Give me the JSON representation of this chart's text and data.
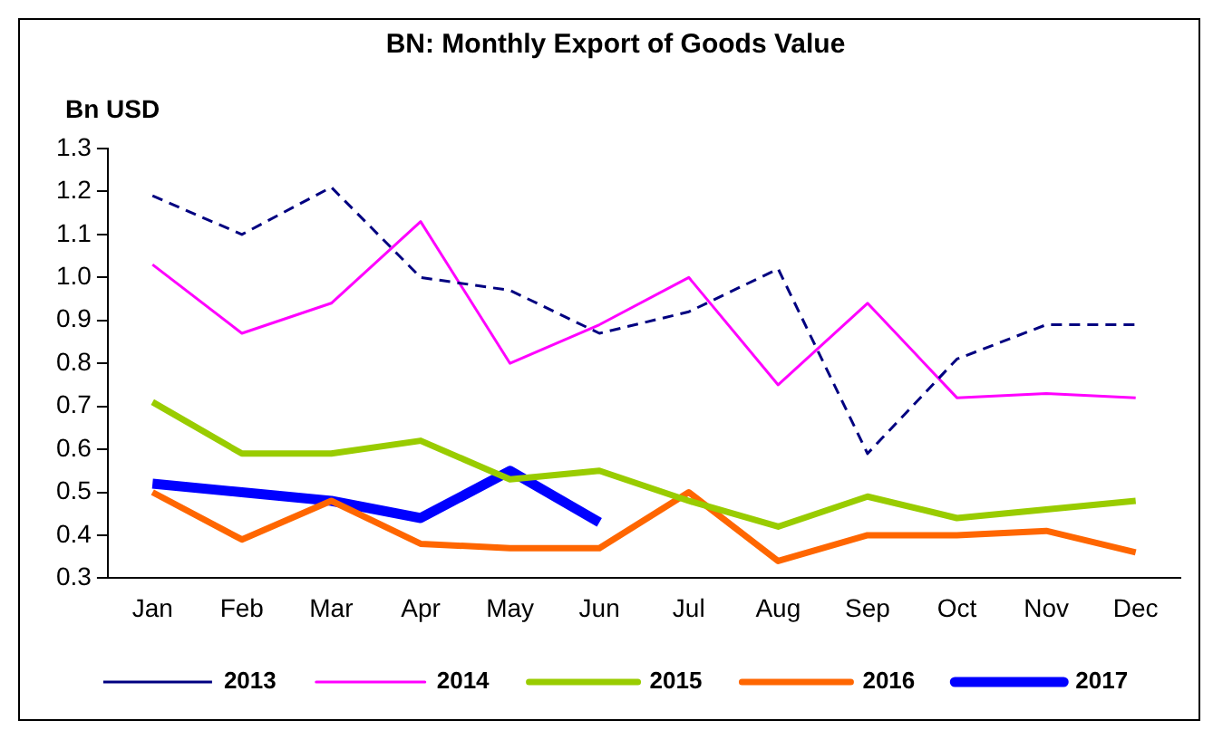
{
  "chart_data": {
    "type": "line",
    "title": "BN: Monthly Export of Goods Value",
    "ylabel": "Bn USD",
    "categories": [
      "Jan",
      "Feb",
      "Mar",
      "Apr",
      "May",
      "Jun",
      "Jul",
      "Aug",
      "Sep",
      "Oct",
      "Nov",
      "Dec"
    ],
    "series": [
      {
        "name": "2013",
        "color": "#000080",
        "line_style": "dashed",
        "values": [
          1.19,
          1.1,
          1.21,
          1.0,
          0.97,
          0.87,
          0.92,
          1.02,
          0.59,
          0.81,
          0.89,
          0.89
        ]
      },
      {
        "name": "2014",
        "color": "#ff00ff",
        "values": [
          1.03,
          0.87,
          0.94,
          1.13,
          0.8,
          0.89,
          1.0,
          0.75,
          0.94,
          0.72,
          0.73,
          0.72
        ]
      },
      {
        "name": "2015",
        "color": "#99cc00",
        "values": [
          0.71,
          0.59,
          0.59,
          0.62,
          0.53,
          0.55,
          0.48,
          0.42,
          0.49,
          0.44,
          0.46,
          0.48
        ]
      },
      {
        "name": "2016",
        "color": "#ff6600",
        "values": [
          0.5,
          0.39,
          0.48,
          0.38,
          0.37,
          0.37,
          0.5,
          0.34,
          0.4,
          0.4,
          0.41,
          0.36
        ]
      },
      {
        "name": "2017",
        "color": "#0000ff",
        "values": [
          0.52,
          0.5,
          0.48,
          0.44,
          0.55,
          0.43,
          null,
          null,
          null,
          null,
          null,
          null
        ]
      }
    ],
    "ylim": [
      0.3,
      1.3
    ],
    "yticks": [
      0.3,
      0.4,
      0.5,
      0.6,
      0.7,
      0.8,
      0.9,
      {
        "value": 1,
        "label": "1.0"
      },
      1.1,
      1.2,
      1.3
    ],
    "grid": false,
    "legend": "bottom",
    "marker": "none",
    "line_style": "solid"
  }
}
